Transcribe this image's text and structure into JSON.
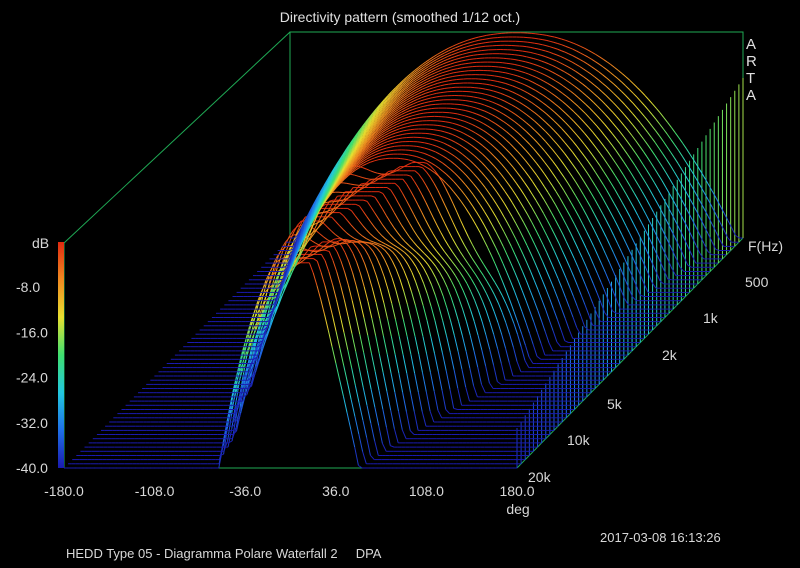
{
  "chart_data": {
    "type": "waterfall-3d",
    "title": "Directivity pattern (smoothed 1/12 oct.)",
    "x_axis": {
      "label": "deg",
      "range": [
        -180,
        180
      ],
      "ticks": [
        "-180.0",
        "-108.0",
        "-36.0",
        "36.0",
        "108.0",
        "180.0"
      ]
    },
    "z_axis": {
      "label": "F(Hz)",
      "range_hz": [
        400,
        20000
      ],
      "scale": "log",
      "ticks": [
        "500",
        "1k",
        "2k",
        "5k",
        "10k",
        "20k"
      ]
    },
    "color_scale": {
      "label": "dB",
      "range": [
        -40,
        0
      ],
      "ticks": [
        "-8.0",
        "-16.0",
        "-24.0",
        "-32.0",
        "-40.0"
      ],
      "colors": [
        "#1a1ab0",
        "#1f6fe8",
        "#22c8e0",
        "#3fe070",
        "#e8e030",
        "#f08a20",
        "#e02a10"
      ]
    },
    "series_count": 56,
    "frequency_hz": [
      400,
      500,
      630,
      800,
      1000,
      1250,
      1600,
      2000,
      2500,
      3150,
      4000,
      5000,
      6300,
      8000,
      10000,
      12500,
      16000,
      20000
    ]
  },
  "brand": {
    "letters": [
      "A",
      "R",
      "T",
      "A"
    ]
  },
  "footer": {
    "timestamp": "2017-03-08  16:13:26",
    "caption": "HEDD Type 05 - Diagramma Polare Waterfall 2     DPA"
  }
}
